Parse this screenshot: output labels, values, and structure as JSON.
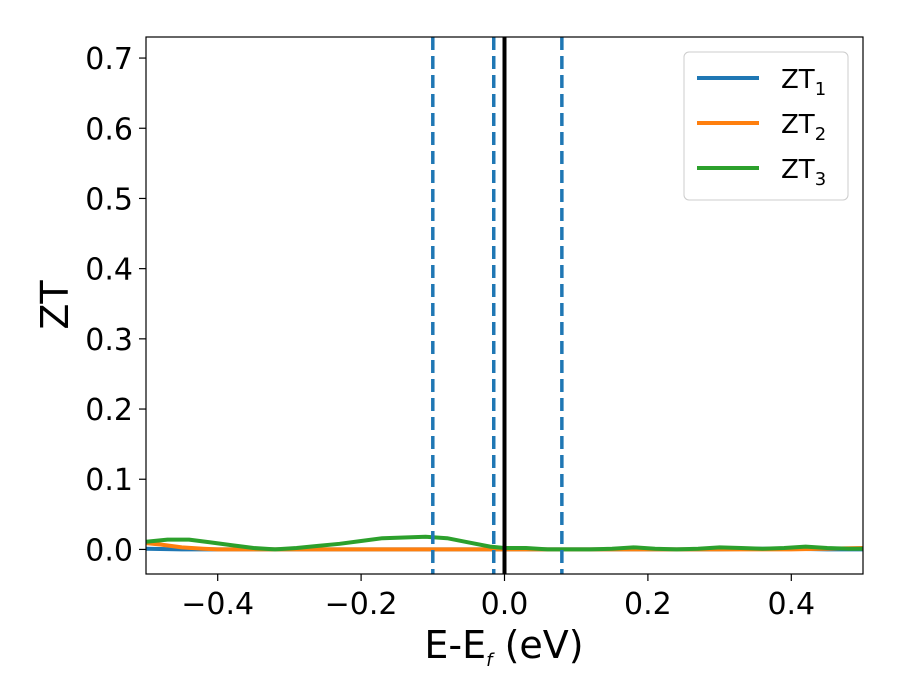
{
  "chart_data": {
    "type": "line",
    "xlabel": "E-E",
    "xlabel_sub": "f",
    "xlabel_unit": " (eV)",
    "ylabel": "ZT",
    "xlim": [
      -0.5,
      0.5
    ],
    "ylim": [
      -0.035,
      0.73
    ],
    "xticks": [
      -0.4,
      -0.2,
      0.0,
      0.2,
      0.4
    ],
    "xtick_labels": [
      "−0.4",
      "−0.2",
      "0.0",
      "0.2",
      "0.4"
    ],
    "yticks": [
      0.0,
      0.1,
      0.2,
      0.3,
      0.4,
      0.5,
      0.6,
      0.7
    ],
    "ytick_labels": [
      "0.0",
      "0.1",
      "0.2",
      "0.3",
      "0.4",
      "0.5",
      "0.6",
      "0.7"
    ],
    "grid": false,
    "legend_position": "top-right",
    "series": [
      {
        "name": "ZT",
        "name_sub": "1",
        "color": "#1f77b4",
        "x": [
          -0.5,
          -0.45,
          -0.4,
          -0.3,
          -0.2,
          -0.1,
          0.0,
          0.1,
          0.2,
          0.3,
          0.35,
          0.4,
          0.45,
          0.5
        ],
        "y": [
          0.001,
          0.0,
          0.0,
          0.0,
          0.0,
          0.0,
          0.0,
          0.0,
          0.0,
          0.0,
          0.001,
          0.001,
          0.0,
          0.0
        ]
      },
      {
        "name": "ZT",
        "name_sub": "2",
        "color": "#ff7f0e",
        "x": [
          -0.5,
          -0.48,
          -0.45,
          -0.42,
          -0.4,
          -0.3,
          -0.2,
          -0.1,
          0.0,
          0.1,
          0.2,
          0.3,
          0.4,
          0.5
        ],
        "y": [
          0.009,
          0.007,
          0.003,
          0.001,
          0.0,
          0.0,
          0.0,
          0.0,
          0.0,
          0.0,
          0.0,
          0.0,
          0.0,
          0.002
        ]
      },
      {
        "name": "ZT",
        "name_sub": "3",
        "color": "#2ca02c",
        "x": [
          -0.5,
          -0.47,
          -0.44,
          -0.41,
          -0.38,
          -0.35,
          -0.32,
          -0.29,
          -0.26,
          -0.23,
          -0.2,
          -0.17,
          -0.14,
          -0.11,
          -0.08,
          -0.05,
          -0.02,
          0.0,
          0.03,
          0.06,
          0.09,
          0.12,
          0.15,
          0.18,
          0.21,
          0.24,
          0.27,
          0.3,
          0.33,
          0.36,
          0.39,
          0.42,
          0.45,
          0.48,
          0.5
        ],
        "y": [
          0.011,
          0.014,
          0.014,
          0.01,
          0.006,
          0.002,
          0.0,
          0.002,
          0.005,
          0.008,
          0.012,
          0.016,
          0.017,
          0.018,
          0.016,
          0.01,
          0.004,
          0.002,
          0.002,
          0.0,
          0.0,
          0.0,
          0.001,
          0.003,
          0.001,
          0.0,
          0.001,
          0.003,
          0.002,
          0.001,
          0.002,
          0.004,
          0.002,
          0.001,
          0.001
        ]
      }
    ],
    "vlines": [
      {
        "x": -0.1,
        "style": "dashed",
        "color": "#1f77b4"
      },
      {
        "x": -0.015,
        "style": "dashed",
        "color": "#1f77b4"
      },
      {
        "x": 0.08,
        "style": "dashed",
        "color": "#1f77b4"
      },
      {
        "x": 0.0,
        "style": "solid",
        "color": "#000000"
      }
    ]
  }
}
